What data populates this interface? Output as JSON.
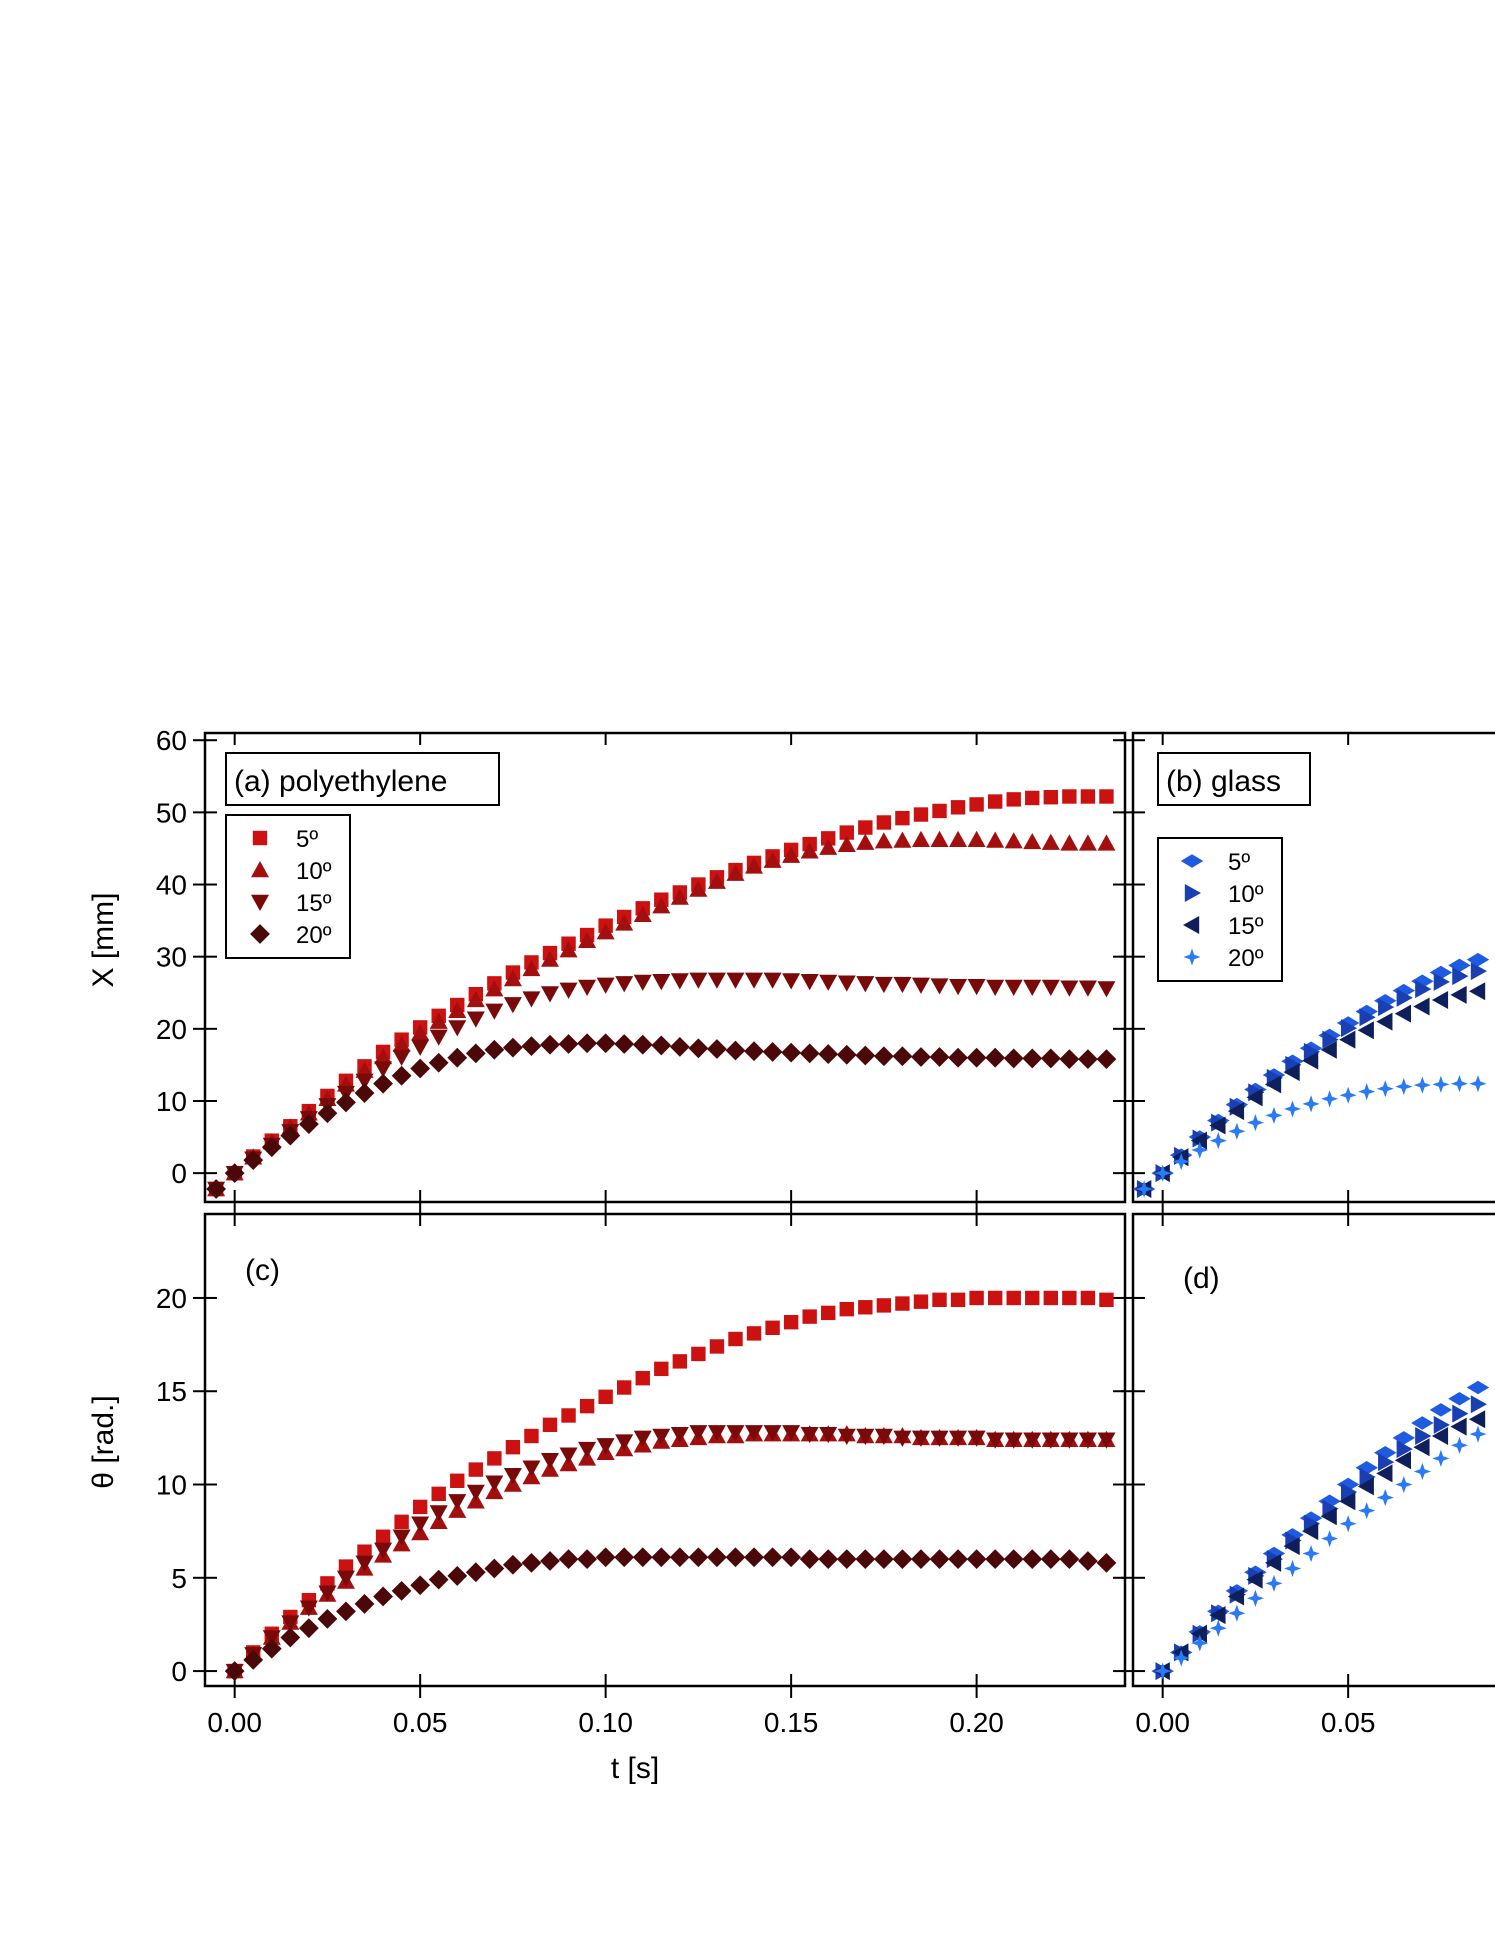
{
  "chart_data": [
    {
      "type": "scatter",
      "panel_label": "(a) polyethylene",
      "xlabel": "",
      "ylabel": "X [mm]",
      "xlim": [
        -0.008,
        0.24
      ],
      "ylim": [
        -4,
        61
      ],
      "yticks": [
        "0",
        "10",
        "20",
        "30",
        "40",
        "50",
        "60"
      ],
      "xticks": [],
      "legend_position": "top-left",
      "x": [
        -0.005,
        0.0,
        0.005,
        0.01,
        0.015,
        0.02,
        0.025,
        0.03,
        0.035,
        0.04,
        0.045,
        0.05,
        0.055,
        0.06,
        0.065,
        0.07,
        0.075,
        0.08,
        0.085,
        0.09,
        0.095,
        0.1,
        0.105,
        0.11,
        0.115,
        0.12,
        0.125,
        0.13,
        0.135,
        0.14,
        0.145,
        0.15,
        0.155,
        0.16,
        0.165,
        0.17,
        0.175,
        0.18,
        0.185,
        0.19,
        0.195,
        0.2,
        0.205,
        0.21,
        0.215,
        0.22,
        0.225,
        0.23,
        0.235
      ],
      "series": [
        {
          "name": "5º",
          "marker": "square",
          "color": "#cc1111",
          "values": [
            -2.2,
            0,
            2.3,
            4.5,
            6.5,
            8.6,
            10.7,
            12.8,
            14.8,
            16.8,
            18.5,
            20.2,
            21.8,
            23.3,
            24.8,
            26.3,
            27.8,
            29.2,
            30.5,
            31.8,
            33.0,
            34.3,
            35.5,
            36.7,
            37.9,
            38.9,
            40.0,
            41.0,
            42.0,
            43.0,
            43.9,
            44.8,
            45.6,
            46.4,
            47.2,
            47.9,
            48.6,
            49.2,
            49.7,
            50.2,
            50.7,
            51.1,
            51.5,
            51.8,
            52.0,
            52.1,
            52.2,
            52.2,
            52.2
          ]
        },
        {
          "name": "10º",
          "marker": "triangle-up",
          "color": "#a30f0f",
          "values": [
            -2.2,
            0,
            2.2,
            4.3,
            6.3,
            8.3,
            10.3,
            12.3,
            14.2,
            16.1,
            17.8,
            19.4,
            21.0,
            22.5,
            24.0,
            25.5,
            26.9,
            28.3,
            29.6,
            30.9,
            32.2,
            33.4,
            34.6,
            35.8,
            37.0,
            38.2,
            39.3,
            40.4,
            41.5,
            42.5,
            43.3,
            44.0,
            44.6,
            45.1,
            45.5,
            45.8,
            46.0,
            46.1,
            46.2,
            46.2,
            46.2,
            46.2,
            46.1,
            46.0,
            45.9,
            45.8,
            45.7,
            45.7,
            45.7
          ]
        },
        {
          "name": "15º",
          "marker": "triangle-down",
          "color": "#7a0a0a",
          "values": [
            -2.2,
            0,
            2.0,
            3.9,
            5.8,
            7.6,
            9.4,
            11.1,
            12.8,
            14.5,
            16.1,
            17.5,
            18.9,
            20.2,
            21.4,
            22.5,
            23.4,
            24.2,
            24.9,
            25.4,
            25.8,
            26.1,
            26.3,
            26.5,
            26.6,
            26.7,
            26.8,
            26.8,
            26.8,
            26.8,
            26.8,
            26.7,
            26.6,
            26.5,
            26.4,
            26.3,
            26.2,
            26.2,
            26.1,
            26.0,
            25.9,
            25.9,
            25.8,
            25.8,
            25.8,
            25.8,
            25.7,
            25.7,
            25.6
          ]
        },
        {
          "name": "20º",
          "marker": "diamond",
          "color": "#4a0808",
          "values": [
            -2.2,
            0,
            1.8,
            3.6,
            5.2,
            6.8,
            8.3,
            9.8,
            11.1,
            12.4,
            13.5,
            14.5,
            15.3,
            16.0,
            16.6,
            17.1,
            17.4,
            17.6,
            17.8,
            17.9,
            18.0,
            18.0,
            17.9,
            17.8,
            17.7,
            17.5,
            17.3,
            17.2,
            17.0,
            16.9,
            16.8,
            16.7,
            16.6,
            16.5,
            16.4,
            16.3,
            16.2,
            16.2,
            16.1,
            16.1,
            16.0,
            16.0,
            16.0,
            15.9,
            15.9,
            15.9,
            15.8,
            15.8,
            15.8
          ]
        }
      ]
    },
    {
      "type": "scatter",
      "panel_label": "(b) glass",
      "xlabel": "",
      "ylabel": "",
      "xlim": [
        -0.008,
        0.085
      ],
      "ylim": [
        -4,
        61
      ],
      "yticks": [],
      "xticks": [],
      "legend_position": "top-left",
      "x": [
        -0.005,
        0.0,
        0.005,
        0.01,
        0.015,
        0.02,
        0.025,
        0.03,
        0.035,
        0.04,
        0.045,
        0.05,
        0.055,
        0.06,
        0.065,
        0.07,
        0.075,
        0.08,
        0.085
      ],
      "series": [
        {
          "name": "5º",
          "marker": "diamond-wide",
          "color": "#1f5be0",
          "values": [
            -2.2,
            0,
            2.5,
            5.0,
            7.3,
            9.5,
            11.6,
            13.6,
            15.5,
            17.3,
            19.1,
            20.8,
            22.4,
            23.9,
            25.3,
            26.6,
            27.8,
            28.8,
            29.6
          ]
        },
        {
          "name": "10º",
          "marker": "triangle-right",
          "color": "#1a3fb3",
          "values": [
            -2.2,
            0,
            2.4,
            4.8,
            7.0,
            9.2,
            11.2,
            13.2,
            15.0,
            16.8,
            18.5,
            20.1,
            21.6,
            23.0,
            24.3,
            25.5,
            26.5,
            27.3,
            28.0
          ]
        },
        {
          "name": "15º",
          "marker": "triangle-left",
          "color": "#0f1f5c",
          "values": [
            -2.2,
            0,
            2.2,
            4.5,
            6.6,
            8.6,
            10.5,
            12.3,
            14.0,
            15.6,
            17.1,
            18.5,
            19.8,
            21.0,
            22.1,
            23.1,
            24.0,
            24.7,
            25.2
          ]
        },
        {
          "name": "20º",
          "marker": "star",
          "color": "#2a7af5",
          "values": [
            -2.2,
            0,
            1.6,
            3.2,
            4.5,
            5.8,
            7.0,
            8.0,
            8.9,
            9.6,
            10.3,
            10.8,
            11.3,
            11.7,
            12.0,
            12.2,
            12.3,
            12.4,
            12.4
          ]
        }
      ]
    },
    {
      "type": "scatter",
      "panel_label": "(c)",
      "xlabel": "t [s]",
      "ylabel": "θ [rad.]",
      "xlim": [
        -0.008,
        0.24
      ],
      "ylim": [
        -0.8,
        24.5
      ],
      "yticks": [
        "0",
        "5",
        "10",
        "15",
        "20"
      ],
      "xticks": [
        "0.00",
        "0.05",
        "0.10",
        "0.15",
        "0.20"
      ],
      "x": [
        0.0,
        0.005,
        0.01,
        0.015,
        0.02,
        0.025,
        0.03,
        0.035,
        0.04,
        0.045,
        0.05,
        0.055,
        0.06,
        0.065,
        0.07,
        0.075,
        0.08,
        0.085,
        0.09,
        0.095,
        0.1,
        0.105,
        0.11,
        0.115,
        0.12,
        0.125,
        0.13,
        0.135,
        0.14,
        0.145,
        0.15,
        0.155,
        0.16,
        0.165,
        0.17,
        0.175,
        0.18,
        0.185,
        0.19,
        0.195,
        0.2,
        0.205,
        0.21,
        0.215,
        0.22,
        0.225,
        0.23,
        0.235
      ],
      "series": [
        {
          "name": "5º",
          "marker": "square",
          "color": "#cc1111",
          "values": [
            0,
            1.0,
            2.0,
            2.9,
            3.8,
            4.7,
            5.6,
            6.4,
            7.2,
            8.0,
            8.8,
            9.5,
            10.2,
            10.8,
            11.4,
            12.0,
            12.6,
            13.2,
            13.7,
            14.2,
            14.7,
            15.2,
            15.7,
            16.2,
            16.6,
            17.0,
            17.4,
            17.8,
            18.1,
            18.4,
            18.7,
            19.0,
            19.2,
            19.4,
            19.5,
            19.6,
            19.7,
            19.8,
            19.9,
            19.9,
            20.0,
            20.0,
            20.0,
            20.0,
            20.0,
            20.0,
            20.0,
            19.9
          ]
        },
        {
          "name": "10º",
          "marker": "triangle-up",
          "color": "#a30f0f",
          "values": [
            0,
            0.9,
            1.8,
            2.6,
            3.4,
            4.1,
            4.8,
            5.5,
            6.2,
            6.8,
            7.4,
            8.0,
            8.6,
            9.1,
            9.6,
            10.0,
            10.4,
            10.8,
            11.1,
            11.4,
            11.7,
            11.9,
            12.1,
            12.3,
            12.4,
            12.5,
            12.6,
            12.6,
            12.7,
            12.7,
            12.7,
            12.7,
            12.7,
            12.7,
            12.6,
            12.6,
            12.6,
            12.5,
            12.5,
            12.5,
            12.5,
            12.4,
            12.4,
            12.4,
            12.4,
            12.4,
            12.4,
            12.4
          ]
        },
        {
          "name": "15º",
          "marker": "triangle-down",
          "color": "#7a0a0a",
          "values": [
            0,
            0.9,
            1.8,
            2.6,
            3.4,
            4.2,
            5.0,
            5.8,
            6.5,
            7.2,
            7.9,
            8.5,
            9.1,
            9.6,
            10.1,
            10.5,
            10.9,
            11.3,
            11.6,
            11.9,
            12.1,
            12.3,
            12.5,
            12.6,
            12.7,
            12.8,
            12.8,
            12.8,
            12.8,
            12.8,
            12.8,
            12.7,
            12.7,
            12.6,
            12.6,
            12.6,
            12.5,
            12.5,
            12.5,
            12.5,
            12.5,
            12.4,
            12.4,
            12.4,
            12.4,
            12.4,
            12.4,
            12.4
          ]
        },
        {
          "name": "20º",
          "marker": "diamond",
          "color": "#4a0808",
          "values": [
            0,
            0.6,
            1.2,
            1.8,
            2.3,
            2.8,
            3.2,
            3.6,
            4.0,
            4.3,
            4.6,
            4.9,
            5.1,
            5.3,
            5.5,
            5.7,
            5.8,
            5.9,
            6.0,
            6.0,
            6.1,
            6.1,
            6.1,
            6.1,
            6.1,
            6.1,
            6.1,
            6.1,
            6.1,
            6.1,
            6.1,
            6.0,
            6.0,
            6.0,
            6.0,
            6.0,
            6.0,
            6.0,
            6.0,
            6.0,
            6.0,
            6.0,
            6.0,
            6.0,
            6.0,
            6.0,
            5.9,
            5.8
          ]
        }
      ]
    },
    {
      "type": "scatter",
      "panel_label": "(d)",
      "xlabel": "",
      "ylabel": "",
      "xlim": [
        -0.008,
        0.085
      ],
      "ylim": [
        -0.8,
        24.5
      ],
      "yticks": [],
      "xticks": [
        "0.00",
        "0.05"
      ],
      "x": [
        0.0,
        0.005,
        0.01,
        0.015,
        0.02,
        0.025,
        0.03,
        0.035,
        0.04,
        0.045,
        0.05,
        0.055,
        0.06,
        0.065,
        0.07,
        0.075,
        0.08,
        0.085
      ],
      "series": [
        {
          "name": "5º",
          "marker": "diamond-wide",
          "color": "#1f5be0",
          "values": [
            0,
            1.0,
            2.1,
            3.2,
            4.3,
            5.3,
            6.3,
            7.3,
            8.2,
            9.1,
            10.0,
            10.9,
            11.7,
            12.5,
            13.3,
            14.0,
            14.6,
            15.2
          ]
        },
        {
          "name": "10º",
          "marker": "triangle-right",
          "color": "#1a3fb3",
          "values": [
            0,
            1.0,
            2.0,
            3.1,
            4.1,
            5.1,
            6.0,
            7.0,
            7.9,
            8.7,
            9.6,
            10.4,
            11.2,
            11.9,
            12.6,
            13.2,
            13.8,
            14.3
          ]
        },
        {
          "name": "15º",
          "marker": "triangle-left",
          "color": "#0f1f5c",
          "values": [
            0,
            1.0,
            2.0,
            3.0,
            4.0,
            4.9,
            5.8,
            6.7,
            7.5,
            8.3,
            9.1,
            9.9,
            10.6,
            11.3,
            12.0,
            12.6,
            13.1,
            13.5
          ]
        },
        {
          "name": "20º",
          "marker": "star",
          "color": "#2a7af5",
          "values": [
            0,
            0.7,
            1.5,
            2.3,
            3.1,
            3.9,
            4.7,
            5.5,
            6.3,
            7.1,
            7.9,
            8.6,
            9.3,
            10.0,
            10.7,
            11.4,
            12.1,
            12.7
          ]
        }
      ]
    }
  ]
}
